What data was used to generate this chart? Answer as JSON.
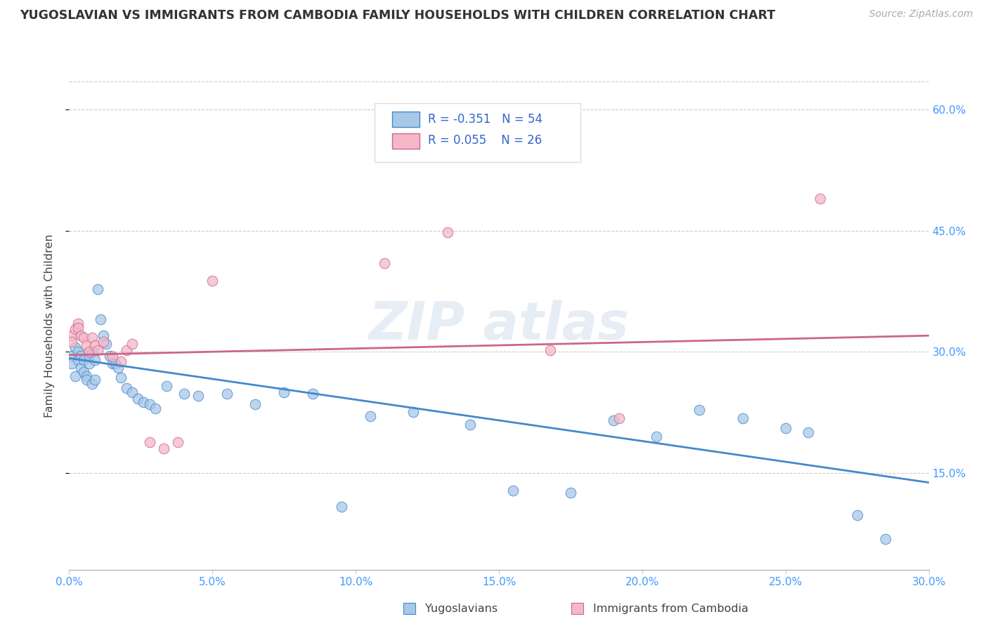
{
  "title": "YUGOSLAVIAN VS IMMIGRANTS FROM CAMBODIA FAMILY HOUSEHOLDS WITH CHILDREN CORRELATION CHART",
  "source": "Source: ZipAtlas.com",
  "ylabel": "Family Households with Children",
  "legend_label_1": "Yugoslavians",
  "legend_label_2": "Immigrants from Cambodia",
  "R1": -0.351,
  "N1": 54,
  "R2": 0.055,
  "N2": 26,
  "xlim": [
    0.0,
    0.3
  ],
  "ylim": [
    0.03,
    0.635
  ],
  "xticks": [
    0.0,
    0.05,
    0.1,
    0.15,
    0.2,
    0.25,
    0.3
  ],
  "yticks": [
    0.15,
    0.3,
    0.45,
    0.6
  ],
  "color_blue": "#a8c8e8",
  "color_pink": "#f4b8c8",
  "color_blue_line": "#4488cc",
  "color_pink_line": "#cc6688",
  "trend1_x": [
    0.0,
    0.3
  ],
  "trend1_y": [
    0.292,
    0.138
  ],
  "trend2_x": [
    0.0,
    0.3
  ],
  "trend2_y": [
    0.296,
    0.32
  ],
  "blue_x": [
    0.001,
    0.001,
    0.002,
    0.002,
    0.003,
    0.003,
    0.004,
    0.004,
    0.005,
    0.005,
    0.006,
    0.006,
    0.007,
    0.007,
    0.008,
    0.008,
    0.009,
    0.009,
    0.01,
    0.011,
    0.012,
    0.013,
    0.014,
    0.015,
    0.016,
    0.017,
    0.018,
    0.02,
    0.022,
    0.024,
    0.026,
    0.028,
    0.03,
    0.034,
    0.04,
    0.045,
    0.055,
    0.065,
    0.075,
    0.085,
    0.095,
    0.105,
    0.12,
    0.14,
    0.155,
    0.175,
    0.19,
    0.205,
    0.22,
    0.235,
    0.25,
    0.258,
    0.275,
    0.285
  ],
  "blue_y": [
    0.295,
    0.285,
    0.305,
    0.27,
    0.3,
    0.29,
    0.295,
    0.28,
    0.29,
    0.275,
    0.27,
    0.265,
    0.285,
    0.295,
    0.3,
    0.26,
    0.265,
    0.29,
    0.378,
    0.34,
    0.32,
    0.31,
    0.295,
    0.285,
    0.285,
    0.28,
    0.268,
    0.255,
    0.25,
    0.242,
    0.238,
    0.235,
    0.23,
    0.258,
    0.248,
    0.245,
    0.248,
    0.235,
    0.25,
    0.248,
    0.108,
    0.22,
    0.225,
    0.21,
    0.128,
    0.125,
    0.215,
    0.195,
    0.228,
    0.218,
    0.205,
    0.2,
    0.098,
    0.068
  ],
  "pink_x": [
    0.001,
    0.001,
    0.002,
    0.003,
    0.003,
    0.004,
    0.005,
    0.006,
    0.007,
    0.008,
    0.009,
    0.01,
    0.012,
    0.015,
    0.018,
    0.02,
    0.022,
    0.028,
    0.033,
    0.038,
    0.05,
    0.11,
    0.132,
    0.168,
    0.192,
    0.262
  ],
  "pink_y": [
    0.32,
    0.312,
    0.328,
    0.335,
    0.33,
    0.32,
    0.318,
    0.308,
    0.3,
    0.318,
    0.308,
    0.302,
    0.312,
    0.294,
    0.288,
    0.302,
    0.31,
    0.188,
    0.18,
    0.188,
    0.388,
    0.41,
    0.448,
    0.302,
    0.218,
    0.49
  ]
}
